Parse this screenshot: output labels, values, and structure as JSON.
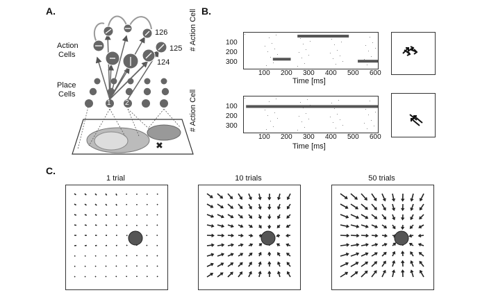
{
  "panel_labels": {
    "a": "A.",
    "b": "B.",
    "c": "C."
  },
  "panel_a": {
    "action_cells_label": [
      "Action",
      "Cells"
    ],
    "place_cells_label": [
      "Place",
      "Cells"
    ],
    "action_cell_ids": [
      "126",
      "125",
      "124"
    ],
    "place_cell_ids": [
      "1",
      "2"
    ]
  },
  "panel_b": {
    "raster_ylabel": "# Action Cell",
    "raster_xlabel": "Time [ms]",
    "y_ticks": [
      "100",
      "200",
      "300"
    ],
    "x_ticks": [
      "100",
      "200",
      "300",
      "400",
      "500",
      "600"
    ]
  },
  "panel_c": {
    "titles": [
      "1 trial",
      "10 trials",
      "50 trials"
    ]
  },
  "colors": {
    "cell_fill": "#666666",
    "arrow": "#222222",
    "goal": "#555555"
  },
  "chart_data": [
    {
      "type": "scatter",
      "name_hint": "B top raster",
      "xlabel": "Time [ms]",
      "ylabel": "# Action Cell",
      "xlim": [
        0,
        600
      ],
      "ylim": [
        380,
        20
      ],
      "segments": [
        {
          "x0": 130,
          "x1": 210,
          "y": 285
        },
        {
          "x0": 240,
          "x1": 470,
          "y": 55
        },
        {
          "x0": 510,
          "x1": 600,
          "y": 305
        }
      ]
    },
    {
      "type": "scatter",
      "name_hint": "B bottom raster",
      "xlabel": "Time [ms]",
      "ylabel": "# Action Cell",
      "xlim": [
        0,
        600
      ],
      "ylim": [
        380,
        20
      ],
      "segments": [
        {
          "x0": 10,
          "x1": 600,
          "y": 120
        }
      ]
    }
  ]
}
